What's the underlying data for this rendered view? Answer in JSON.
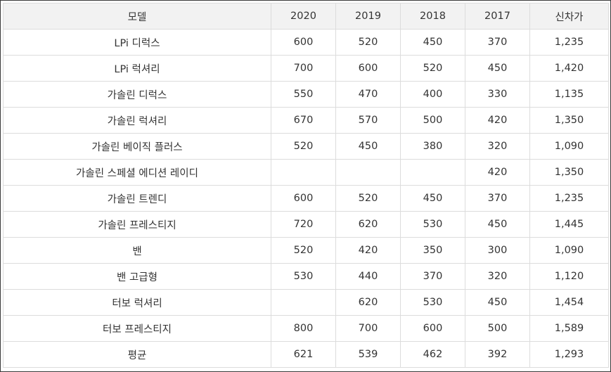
{
  "table": {
    "headers": [
      "모델",
      "2020",
      "2019",
      "2018",
      "2017",
      "신차가"
    ],
    "rows": [
      [
        "LPi 디럭스",
        "600",
        "520",
        "450",
        "370",
        "1,235"
      ],
      [
        "LPi 럭셔리",
        "700",
        "600",
        "520",
        "450",
        "1,420"
      ],
      [
        "가솔린 디럭스",
        "550",
        "470",
        "400",
        "330",
        "1,135"
      ],
      [
        "가솔린 럭셔리",
        "670",
        "570",
        "500",
        "420",
        "1,350"
      ],
      [
        "가솔린 베이직 플러스",
        "520",
        "450",
        "380",
        "320",
        "1,090"
      ],
      [
        "가솔린 스페셜 에디션 레이디",
        "",
        "",
        "",
        "420",
        "1,350"
      ],
      [
        "가솔린 트렌디",
        "600",
        "520",
        "450",
        "370",
        "1,235"
      ],
      [
        "가솔린 프레스티지",
        "720",
        "620",
        "530",
        "450",
        "1,445"
      ],
      [
        "밴",
        "520",
        "420",
        "350",
        "300",
        "1,090"
      ],
      [
        "밴 고급형",
        "530",
        "440",
        "370",
        "320",
        "1,120"
      ],
      [
        "터보 럭셔리",
        "",
        "620",
        "530",
        "450",
        "1,454"
      ],
      [
        "터보 프레스티지",
        "800",
        "700",
        "600",
        "500",
        "1,589"
      ],
      [
        "평균",
        "621",
        "539",
        "462",
        "392",
        "1,293"
      ]
    ]
  }
}
